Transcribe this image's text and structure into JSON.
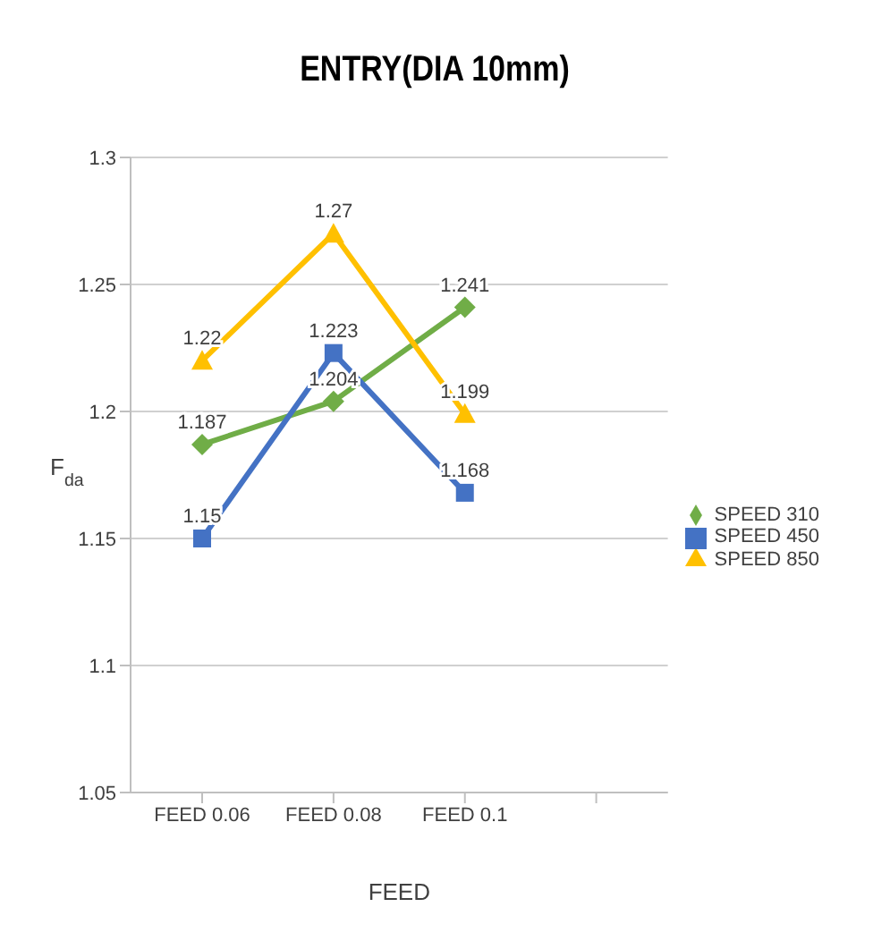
{
  "chart_data": {
    "type": "line",
    "title": "ENTRY(DIA 10mm)",
    "xlabel": "FEED",
    "ylabel": "F$_{da}$",
    "categories": [
      "FEED 0.06",
      "FEED 0.08",
      "FEED 0.1",
      null
    ],
    "series": [
      {
        "name": "SPEED 310",
        "color": "#70ad47",
        "marker": "diamond",
        "values": [
          1.187,
          1.204,
          1.241,
          null
        ]
      },
      {
        "name": "SPEED 450",
        "color": "#4472c4",
        "marker": "square",
        "values": [
          1.15,
          1.223,
          1.168,
          null
        ]
      },
      {
        "name": "SPEED 850",
        "color": "#ffc000",
        "marker": "triangle",
        "values": [
          1.22,
          1.27,
          1.199,
          null
        ]
      }
    ],
    "ylim": [
      1.05,
      1.3
    ],
    "yticks": [
      1.05,
      1.1,
      1.15,
      1.2,
      1.25,
      1.3
    ],
    "grid": "y",
    "legend": "right",
    "data_labels": true,
    "line_style": "solid"
  }
}
